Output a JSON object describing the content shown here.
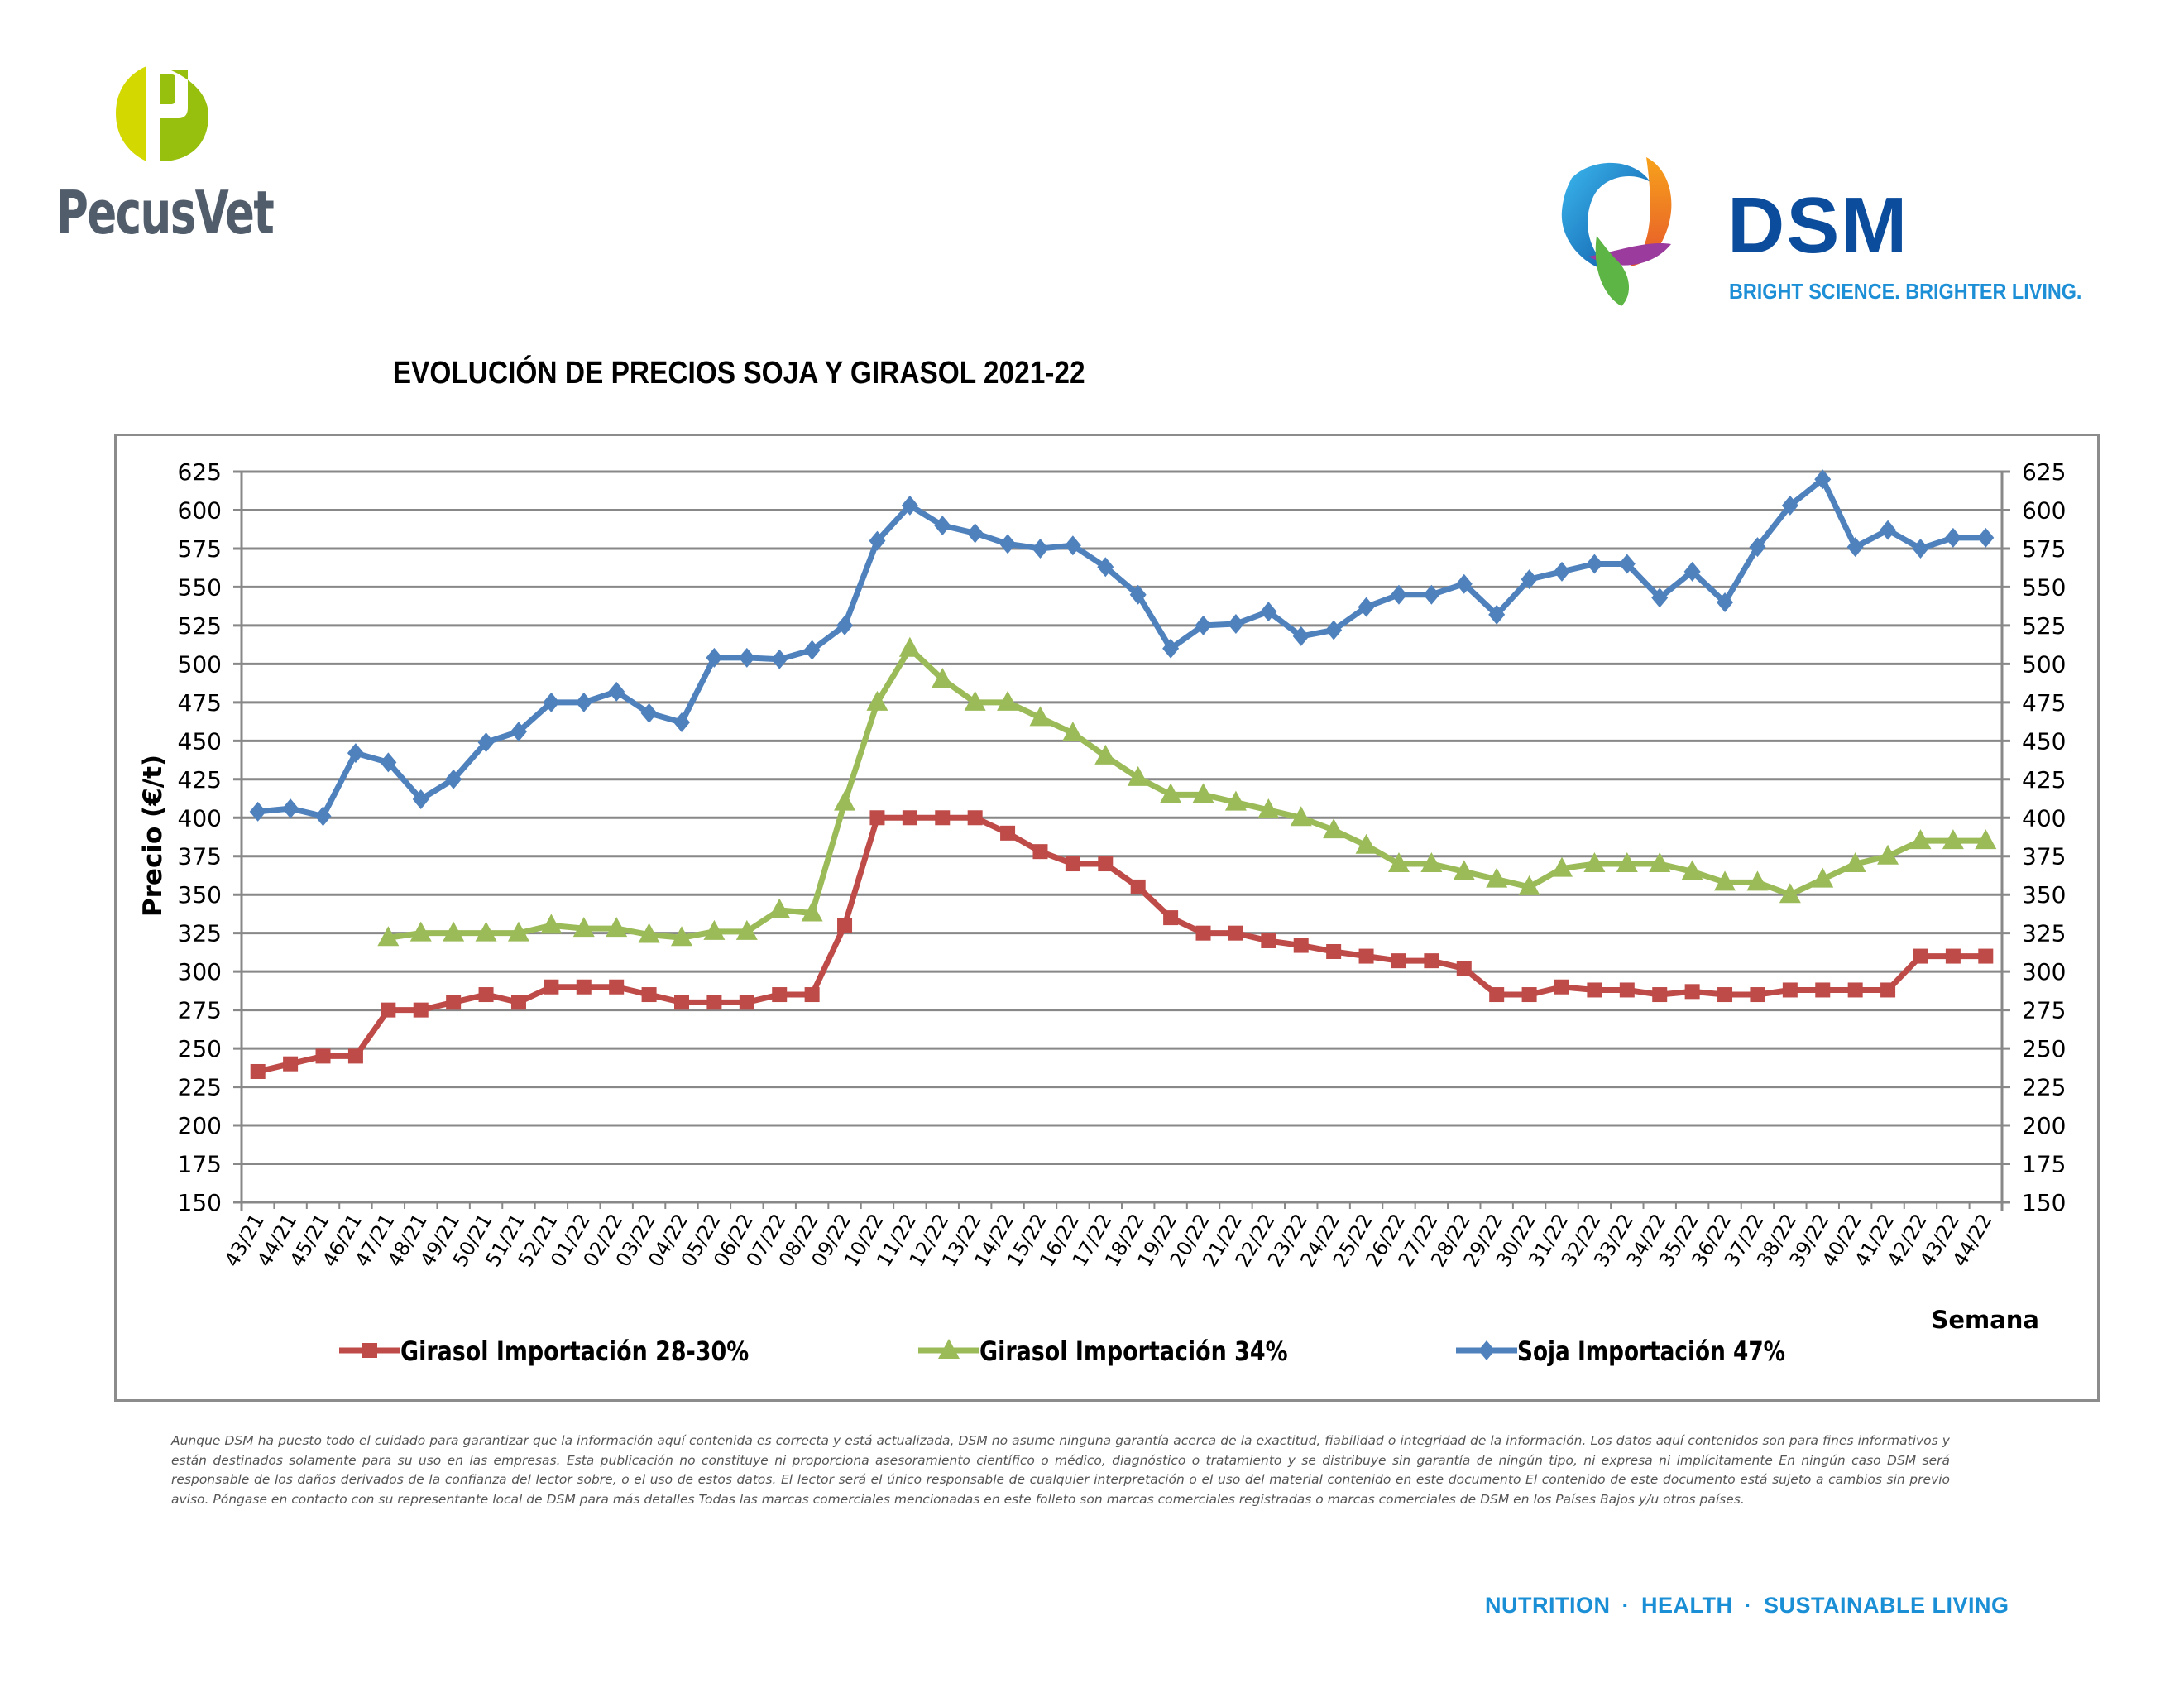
{
  "header": {
    "left_logo": {
      "name": "PecusVet",
      "colors": {
        "light": "#d3d800",
        "dark": "#97bf0d",
        "text": "#515d6b"
      }
    },
    "right_logo": {
      "name": "DSM",
      "tagline": "BRIGHT SCIENCE. BRIGHTER LIVING.",
      "colors": {
        "name": "#0c4c9c",
        "tagline": "#1d8fd6"
      }
    }
  },
  "chart_data": {
    "type": "line",
    "title": "EVOLUCIÓN DE PRECIOS SOJA Y GIRASOL 2021-22",
    "xlabel": "Semana",
    "ylabel": "Precio (€/t)",
    "ylim": [
      150,
      625
    ],
    "ytick_step": 25,
    "yticks": [
      "150",
      "175",
      "200",
      "225",
      "250",
      "275",
      "300",
      "325",
      "350",
      "375",
      "400",
      "425",
      "450",
      "475",
      "500",
      "525",
      "550",
      "575",
      "600",
      "625"
    ],
    "secondary_y_axis": true,
    "grid": true,
    "legend_position": "bottom",
    "categories": [
      "43/21",
      "44/21",
      "45/21",
      "46/21",
      "47/21",
      "48/21",
      "49/21",
      "50/21",
      "51/21",
      "52/21",
      "01/22",
      "02/22",
      "03/22",
      "04/22",
      "05/22",
      "06/22",
      "07/22",
      "08/22",
      "09/22",
      "10/22",
      "11/22",
      "12/22",
      "13/22",
      "14/22",
      "15/22",
      "16/22",
      "17/22",
      "18/22",
      "19/22",
      "20/22",
      "21/22",
      "22/22",
      "23/22",
      "24/22",
      "25/22",
      "26/22",
      "27/22",
      "28/22",
      "29/22",
      "30/22",
      "31/22",
      "32/22",
      "33/22",
      "34/22",
      "35/22",
      "36/22",
      "37/22",
      "38/22",
      "39/22",
      "40/22",
      "41/22",
      "42/22",
      "43/22",
      "44/22"
    ],
    "series": [
      {
        "name": "Girasol Importación 28-30%",
        "color": "#be4b48",
        "marker": "square",
        "values": [
          235,
          240,
          245,
          245,
          275,
          275,
          280,
          285,
          280,
          290,
          290,
          290,
          285,
          280,
          280,
          280,
          285,
          285,
          330,
          400,
          400,
          400,
          400,
          390,
          378,
          370,
          370,
          355,
          335,
          325,
          325,
          320,
          317,
          313,
          310,
          307,
          307,
          302,
          285,
          285,
          290,
          288,
          288,
          285,
          287,
          285,
          285,
          288,
          288,
          288,
          288,
          310,
          310,
          310
        ]
      },
      {
        "name": "Girasol Importación 34%",
        "color": "#9bbb59",
        "marker": "triangle",
        "values": [
          null,
          null,
          null,
          null,
          322,
          325,
          325,
          325,
          325,
          330,
          328,
          328,
          324,
          322,
          326,
          326,
          340,
          338,
          410,
          475,
          510,
          490,
          475,
          475,
          465,
          455,
          440,
          426,
          415,
          415,
          410,
          405,
          400,
          392,
          382,
          370,
          370,
          365,
          360,
          355,
          367,
          370,
          370,
          370,
          365,
          358,
          358,
          350,
          360,
          370,
          375,
          385,
          385,
          385
        ]
      },
      {
        "name": "Soja Importación 47%",
        "color": "#4f81bd",
        "marker": "diamond",
        "values": [
          404,
          406,
          401,
          442,
          436,
          412,
          425,
          449,
          456,
          475,
          475,
          482,
          468,
          462,
          504,
          504,
          503,
          509,
          525,
          580,
          603,
          590,
          585,
          578,
          575,
          577,
          563,
          545,
          510,
          525,
          526,
          534,
          518,
          522,
          537,
          545,
          545,
          552,
          532,
          555,
          560,
          565,
          565,
          543,
          560,
          540,
          576,
          603,
          620,
          576,
          587,
          575,
          582,
          582
        ]
      }
    ]
  },
  "disclaimer": "Aunque DSM ha puesto todo el cuidado para garantizar que la información aquí contenida es correcta y está actualizada, DSM no asume ninguna garantía acerca de la exactitud, fiabilidad o integridad de la información. Los datos aquí contenidos son para fines informativos y están destinados solamente para su uso en las empresas. Esta publicación no constituye ni proporciona asesoramiento científico o médico, diagnóstico o tratamiento y se distribuye sin garantía de ningún tipo, ni expresa ni implícitamente En ningún caso DSM será responsable de los daños derivados de la confianza del lector sobre, o el uso de estos datos. El lector será el único responsable de cualquier interpretación o el uso del material contenido en este documento El contenido de este documento está sujeto a cambios sin previo aviso. Póngase en contacto con su representante local de DSM para más detalles Todas las marcas comerciales mencionadas en este folleto son marcas comerciales registradas o marcas comerciales de DSM en los Países Bajos y/u otros países.",
  "footer": {
    "tagline_parts": [
      "NUTRITION",
      "HEALTH",
      "SUSTAINABLE LIVING"
    ],
    "separator": "·"
  }
}
